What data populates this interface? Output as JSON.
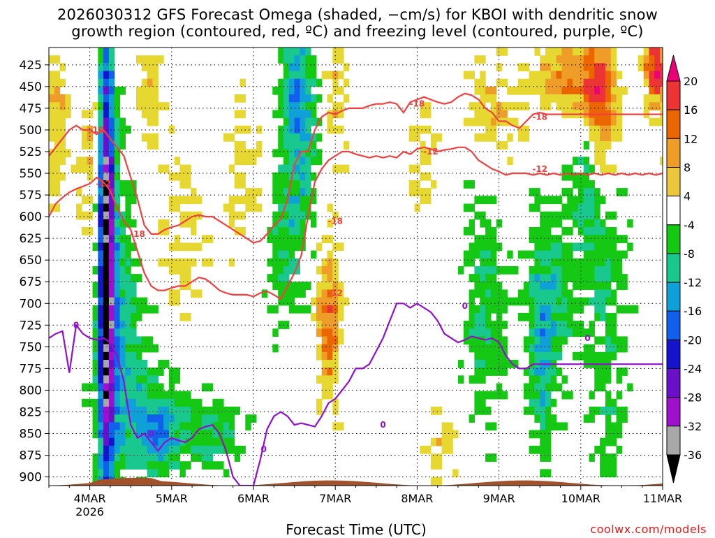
{
  "chart_data": {
    "type": "heatmap",
    "title_line1": "2026030312 GFS Forecast Omega (shaded, −cm/s) for KBOI with dendritic snow",
    "title_line2": "growth region (contoured, red, ºC) and freezing level (contoured, purple, ºC)",
    "xlabel": "Forecast Time (UTC)",
    "credit": "coolwx.com/models",
    "x_ticks": [
      "4MAR",
      "5MAR",
      "6MAR",
      "7MAR",
      "8MAR",
      "9MAR",
      "10MAR",
      "11MAR"
    ],
    "x_year_label": "2026",
    "x_range_hours": [
      -12,
      168
    ],
    "y_ticks": [
      425,
      450,
      475,
      500,
      525,
      550,
      575,
      600,
      625,
      650,
      675,
      700,
      725,
      750,
      775,
      800,
      825,
      850,
      875,
      900
    ],
    "ylim": [
      405,
      910
    ],
    "colorbar": {
      "tick_labels": [
        "20",
        "16",
        "12",
        "8",
        "4",
        "-4",
        "-8",
        "-12",
        "-16",
        "-20",
        "-24",
        "-28",
        "-32",
        "-36"
      ],
      "colors": [
        "#ec0078",
        "#ec3434",
        "#ec6600",
        "#ee9e28",
        "#ecc63c",
        "#e6d830",
        "#ffffff",
        "#14c814",
        "#18c88c",
        "#10a0d8",
        "#1060ec",
        "#1414cc",
        "#6a10c8",
        "#9e10cc",
        "#a8a8a8",
        "#000000"
      ]
    },
    "dgz_contour_labels": [
      "-18",
      "-12"
    ],
    "freezing_contour_label": "0",
    "series": [
      {
        "name": "DGZ -18C",
        "color": "#f04040",
        "hours": [
          -12,
          -10,
          -8,
          -6,
          -4,
          -2,
          0,
          2,
          4,
          6,
          8,
          10,
          12,
          14,
          16,
          18,
          20,
          22,
          24,
          26,
          28,
          30,
          32,
          34,
          36,
          38,
          40,
          42,
          44,
          46,
          48,
          50,
          52,
          54,
          56,
          58,
          60,
          62,
          64,
          66,
          68,
          70,
          72,
          74,
          76,
          78,
          80,
          82,
          84,
          86,
          88,
          90,
          92,
          94,
          96,
          98,
          100,
          102,
          104,
          106,
          108,
          110,
          112,
          114,
          116,
          118,
          120,
          122,
          124,
          126,
          128,
          130,
          132,
          134,
          136,
          138,
          140,
          142,
          144,
          146,
          148,
          150,
          152,
          154,
          156,
          158,
          160,
          162,
          164,
          166,
          168
        ],
        "pressure": [
          530,
          520,
          510,
          500,
          495,
          500,
          500,
          505,
          500,
          510,
          520,
          530,
          555,
          580,
          610,
          620,
          620,
          615,
          612,
          610,
          605,
          600,
          598,
          600,
          600,
          605,
          610,
          615,
          620,
          625,
          630,
          628,
          620,
          610,
          603,
          580,
          540,
          525,
          525,
          500,
          485,
          480,
          482,
          478,
          475,
          475,
          475,
          472,
          470,
          470,
          468,
          470,
          480,
          468,
          465,
          462,
          465,
          468,
          470,
          468,
          462,
          458,
          460,
          465,
          475,
          480,
          490,
          490,
          495,
          498,
          490,
          482,
          480,
          482,
          482,
          482,
          482,
          482,
          482,
          482,
          482,
          482,
          482,
          482,
          482,
          482,
          482,
          482,
          482,
          482,
          482
        ]
      },
      {
        "name": "DGZ -12C",
        "color": "#f04040",
        "hours": [
          -12,
          -10,
          -8,
          -6,
          -4,
          -2,
          0,
          2,
          4,
          6,
          8,
          10,
          12,
          14,
          16,
          18,
          20,
          22,
          24,
          26,
          28,
          30,
          32,
          34,
          36,
          38,
          40,
          42,
          44,
          46,
          48,
          50,
          52,
          54,
          56,
          58,
          60,
          62,
          64,
          66,
          68,
          70,
          72,
          74,
          76,
          78,
          80,
          82,
          84,
          86,
          88,
          90,
          92,
          94,
          96,
          98,
          100,
          102,
          104,
          106,
          108,
          110,
          112,
          114,
          116,
          118,
          120,
          122,
          124,
          126,
          128,
          130,
          132,
          134,
          136,
          138,
          140,
          142,
          144,
          146,
          148,
          150,
          152,
          154,
          156,
          158,
          160,
          162,
          164,
          166,
          168
        ],
        "pressure": [
          600,
          585,
          578,
          572,
          568,
          565,
          562,
          555,
          560,
          570,
          590,
          605,
          615,
          640,
          665,
          680,
          685,
          685,
          682,
          680,
          680,
          675,
          670,
          672,
          678,
          685,
          688,
          690,
          690,
          690,
          692,
          688,
          686,
          690,
          695,
          680,
          665,
          645,
          600,
          560,
          545,
          535,
          530,
          525,
          525,
          528,
          530,
          532,
          530,
          532,
          530,
          532,
          525,
          528,
          522,
          520,
          522,
          525,
          523,
          522,
          520,
          520,
          525,
          535,
          540,
          545,
          548,
          552,
          550,
          550,
          550,
          552,
          550,
          552,
          550,
          552,
          550,
          552,
          550,
          552,
          550,
          552,
          550,
          552,
          550,
          552,
          550,
          552,
          550,
          552,
          550
        ]
      },
      {
        "name": "Freezing level 0C",
        "color": "#9010cc",
        "hours": [
          -12,
          -10,
          -8,
          -6,
          -4,
          -2,
          0,
          2,
          4,
          6,
          8,
          10,
          12,
          14,
          16,
          18,
          20,
          22,
          24,
          26,
          28,
          30,
          32,
          34,
          36,
          38,
          40,
          42,
          44,
          46,
          48,
          50,
          52,
          54,
          56,
          58,
          60,
          62,
          64,
          66,
          68,
          70,
          72,
          74,
          76,
          78,
          80,
          82,
          84,
          86,
          88,
          90,
          92,
          94,
          96,
          98,
          100,
          102,
          104,
          106,
          108,
          110,
          112,
          114,
          116,
          118,
          120,
          122,
          124,
          126,
          128,
          130,
          132,
          134,
          136,
          138,
          140,
          142,
          144,
          146,
          148,
          150,
          152,
          154,
          156,
          158,
          160,
          162,
          164,
          166,
          168
        ],
        "pressure": [
          740,
          735,
          732,
          780,
          725,
          735,
          740,
          742,
          740,
          745,
          760,
          790,
          840,
          855,
          850,
          860,
          870,
          860,
          855,
          858,
          860,
          855,
          845,
          842,
          840,
          850,
          870,
          900,
          910,
          910,
          910,
          880,
          845,
          830,
          825,
          830,
          840,
          838,
          840,
          842,
          830,
          815,
          810,
          800,
          790,
          775,
          775,
          770,
          755,
          740,
          720,
          700,
          700,
          705,
          700,
          705,
          710,
          720,
          735,
          740,
          745,
          742,
          738,
          740,
          742,
          740,
          745,
          760,
          770,
          775,
          775,
          770,
          770,
          770,
          770,
          770,
          770,
          770,
          770,
          770,
          770,
          770,
          770,
          770,
          770,
          770,
          770,
          770,
          770,
          770,
          770
        ]
      }
    ],
    "omega_features": [
      {
        "hour": 4,
        "p_top": 405,
        "p_bottom": 900,
        "value": -28
      },
      {
        "hour": 6,
        "p_top": 420,
        "p_bottom": 880,
        "value": -12
      },
      {
        "hour": 60,
        "p_top": 480,
        "p_bottom": 830,
        "value": -8
      },
      {
        "hour": 64,
        "p_top": 405,
        "p_bottom": 620,
        "value": -12
      },
      {
        "hour": 70,
        "p_top": 660,
        "p_bottom": 820,
        "value": 12
      },
      {
        "hour": 148,
        "p_top": 405,
        "p_bottom": 560,
        "value": 12
      },
      {
        "hour": 164,
        "p_top": 405,
        "p_bottom": 500,
        "value": 20
      }
    ]
  }
}
